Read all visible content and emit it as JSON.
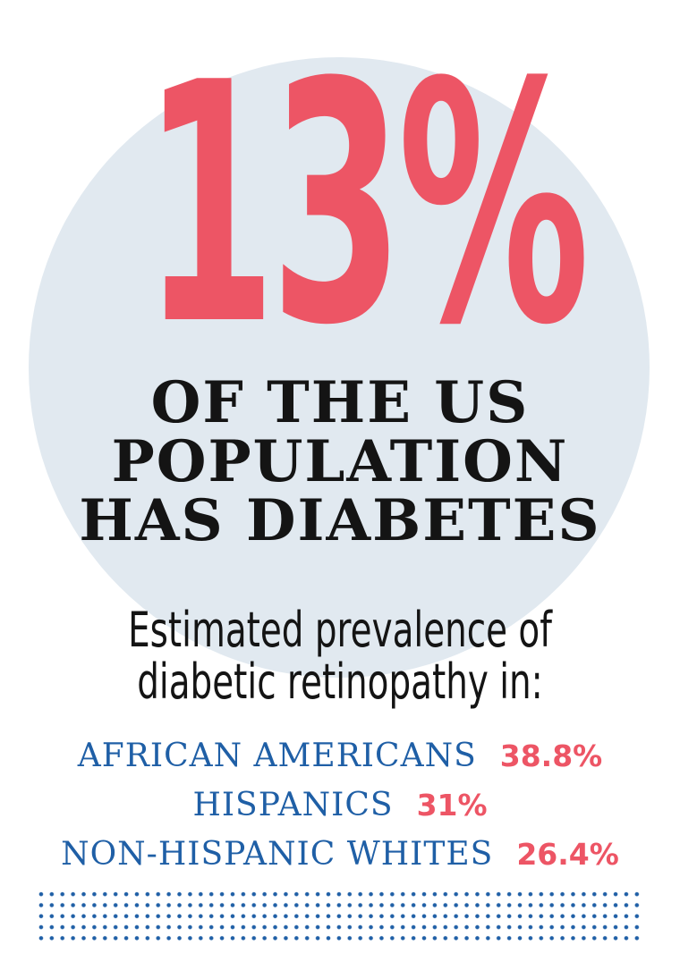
{
  "hero": {
    "big_number": "13%",
    "headline_lines": [
      "OF THE US",
      "POPULATION",
      "HAS DIABETES"
    ]
  },
  "subheading_lines": [
    "Estimated prevalence of",
    "diabetic retinopathy in:"
  ],
  "stats": [
    {
      "label": "AFRICAN AMERICANS",
      "value": "38.8%"
    },
    {
      "label": "HISPANICS",
      "value": "31%"
    },
    {
      "label": "NON-HISPANIC WHITES",
      "value": "26.4%"
    }
  ],
  "colors": {
    "accent_red": "#ed5565",
    "label_blue": "#1f5fa6",
    "circle_bg": "#e1e9f0",
    "text_dark": "#141414"
  }
}
